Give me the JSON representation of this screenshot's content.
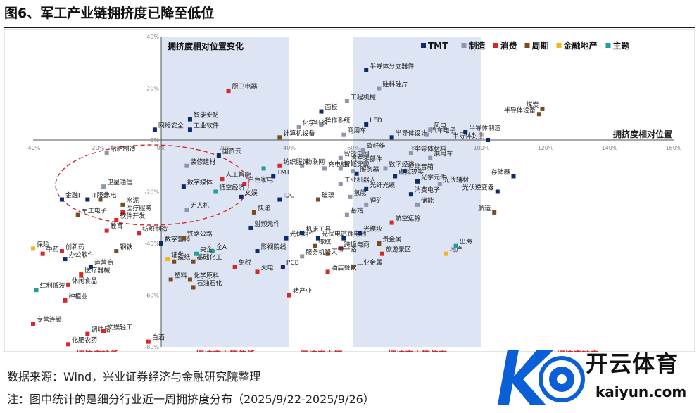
{
  "figure": {
    "title": "图6、军工产业链拥挤度已降至低位",
    "source": "数据来源：Wind，兴业证券经济与金融研究院整理",
    "note": "注：图中统计的是细分行业近一周拥挤度分布（2025/9/22-2025/9/26）"
  },
  "logo": {
    "cn": "开云体育",
    "en": "kaiyun.com"
  },
  "chart_data": {
    "type": "scatter",
    "title": "拥挤度相对位置变化",
    "xlabel": "拥挤度相对位置",
    "ylabel": "",
    "xlim": [
      -40,
      160
    ],
    "ylim": [
      -80,
      40
    ],
    "x_ticks": [
      -40,
      -20,
      0,
      20,
      40,
      60,
      80,
      100,
      120,
      140,
      160
    ],
    "y_ticks": [
      40,
      20,
      0,
      -20,
      -40,
      -60,
      -80
    ],
    "tick_format": "%",
    "grid": false,
    "legend_position": "top-right",
    "annotation": "ellipse",
    "bands": [
      {
        "label": "拥挤度较低",
        "from": -40,
        "to": 0,
        "color": "#ffffff"
      },
      {
        "label": "拥挤度中等偏低",
        "from": 0,
        "to": 40,
        "color": "#dde4f3"
      },
      {
        "label": "拥挤度中等",
        "from": 40,
        "to": 60,
        "color": "#ffffff"
      },
      {
        "label": "拥挤度中等偏高",
        "from": 60,
        "to": 100,
        "color": "#dde4f3"
      },
      {
        "label": "拥挤度较高",
        "from": 100,
        "to": 160,
        "color": "#ffffff"
      }
    ],
    "series": [
      {
        "name": "TMT",
        "color": "#0d2b6b",
        "points": [
          {
            "label": "半导体分立器件",
            "x": 64,
            "y": 27
          },
          {
            "label": "LED",
            "x": 64,
            "y": 6
          },
          {
            "label": "半导体设计",
            "x": 72,
            "y": 1
          },
          {
            "label": "半导体制造",
            "x": 95,
            "y": 3
          },
          {
            "label": "半导体封测",
            "x": 102,
            "y": 0
          },
          {
            "label": "网络安全",
            "x": -2,
            "y": 4
          },
          {
            "label": "智能安防",
            "x": 9,
            "y": 8
          },
          {
            "label": "工业软件",
            "x": 9,
            "y": 4
          },
          {
            "label": "面板",
            "x": 50,
            "y": 11
          },
          {
            "label": "国资云",
            "x": 18,
            "y": -6
          },
          {
            "label": "数字媒体",
            "x": 7,
            "y": -18
          },
          {
            "label": "TMT",
            "x": 35,
            "y": -14
          },
          {
            "label": "文娱",
            "x": 25,
            "y": -22
          },
          {
            "label": "IDC",
            "x": 37,
            "y": -23
          },
          {
            "label": "射频元件",
            "x": 28,
            "y": -34
          },
          {
            "label": "影视院线",
            "x": 30,
            "y": -43
          },
          {
            "label": "PCB",
            "x": 38,
            "y": -49
          },
          {
            "label": "光伏组件",
            "x": 39,
            "y": -38
          },
          {
            "label": "机床工具",
            "x": 44,
            "y": -36
          },
          {
            "label": "光伏电站",
            "x": 49,
            "y": -38
          },
          {
            "label": "锂电池",
            "x": 57,
            "y": -38
          },
          {
            "label": "光模块",
            "x": 62,
            "y": -36
          },
          {
            "label": "服务器",
            "x": 61,
            "y": -13
          },
          {
            "label": "光纤光缆",
            "x": 64,
            "y": -19
          },
          {
            "label": "虚拟现实",
            "x": 73,
            "y": -14
          },
          {
            "label": "智能音箱",
            "x": 76,
            "y": -12
          },
          {
            "label": "消费电子",
            "x": 78,
            "y": -21
          },
          {
            "label": "光学元件",
            "x": 80,
            "y": -16
          },
          {
            "label": "存储器",
            "x": 110,
            "y": -14
          },
          {
            "label": "光伏逆变器",
            "x": 105,
            "y": -20
          },
          {
            "label": "数字营销",
            "x": 0,
            "y": -40
          },
          {
            "label": "运营商",
            "x": -22,
            "y": -49
          },
          {
            "label": "办公软件",
            "x": -30,
            "y": -46
          },
          {
            "label": "金融IT",
            "x": -31,
            "y": -23
          },
          {
            "label": "IT服务",
            "x": -23,
            "y": -23
          }
        ]
      },
      {
        "name": "制造",
        "color": "#8a98ad",
        "points": [
          {
            "label": "硅料硅片",
            "x": 68,
            "y": 20
          },
          {
            "label": "工程机械",
            "x": 58,
            "y": 15
          },
          {
            "label": "风电",
            "x": 84,
            "y": 4
          },
          {
            "label": "汽车电子",
            "x": 83,
            "y": 2
          },
          {
            "label": "操作系统",
            "x": 50,
            "y": 6
          },
          {
            "label": "化学纤维",
            "x": 43,
            "y": 5
          },
          {
            "label": "商用车",
            "x": 57,
            "y": 2
          },
          {
            "label": "船舶制造",
            "x": -17,
            "y": -5
          },
          {
            "label": "装修建材",
            "x": 8,
            "y": -10
          },
          {
            "label": "卫星通信",
            "x": -18,
            "y": -18
          },
          {
            "label": "无人机",
            "x": 8,
            "y": -27
          },
          {
            "label": "半导体材料",
            "x": 78,
            "y": -5
          },
          {
            "label": "乘用车",
            "x": 84,
            "y": -7
          },
          {
            "label": "数字经济",
            "x": 70,
            "y": -11
          },
          {
            "label": "汽车零部件",
            "x": 58,
            "y": -9
          },
          {
            "label": "智能电网",
            "x": 56,
            "y": -7
          },
          {
            "label": "碳纤维",
            "x": 63,
            "y": -4
          },
          {
            "label": "工业机器人",
            "x": 56,
            "y": -17
          },
          {
            "label": "氢能",
            "x": 59,
            "y": -22
          },
          {
            "label": "锂矿",
            "x": 64,
            "y": -25
          },
          {
            "label": "基站",
            "x": 58,
            "y": -29
          },
          {
            "label": "光伏辅材",
            "x": 87,
            "y": -17
          },
          {
            "label": "储能",
            "x": 80,
            "y": -25
          },
          {
            "label": "服务机器人",
            "x": 44,
            "y": -45
          },
          {
            "label": "充电桩",
            "x": 51,
            "y": -11
          },
          {
            "label": "物联网",
            "x": 44,
            "y": -10
          },
          {
            "label": "锂电池群",
            "x": 60,
            "y": -12
          },
          {
            "label": "智能穿戴",
            "x": 56,
            "y": -11
          }
        ]
      },
      {
        "name": "消费",
        "color": "#d9262a",
        "points": [
          {
            "label": "厨卫电器",
            "x": 21,
            "y": 19
          },
          {
            "label": "人工智能",
            "x": 19,
            "y": -15
          },
          {
            "label": "纺织服饰",
            "x": 37,
            "y": -10
          },
          {
            "label": "白色家电",
            "x": 26,
            "y": -17
          },
          {
            "label": "免税",
            "x": 23,
            "y": -49
          },
          {
            "label": "火电",
            "x": 30,
            "y": -51
          },
          {
            "label": "猪产业",
            "x": 40,
            "y": -60
          },
          {
            "label": "酒店餐饮",
            "x": 52,
            "y": -51
          },
          {
            "label": "跨境电商",
            "x": 56,
            "y": -42
          },
          {
            "label": "旅游景区",
            "x": 69,
            "y": -44
          },
          {
            "label": "航空运输",
            "x": 72,
            "y": -32
          },
          {
            "label": "教育",
            "x": -17,
            "y": -35
          },
          {
            "label": "纺织制造",
            "x": -7,
            "y": -36
          },
          {
            "label": "医疗服务",
            "x": -12,
            "y": -28
          },
          {
            "label": "软件开发",
            "x": -14,
            "y": -31
          },
          {
            "label": "中药",
            "x": -37,
            "y": -44
          },
          {
            "label": "创新药",
            "x": -31,
            "y": -43
          },
          {
            "label": "医疗器械",
            "x": -25,
            "y": -52
          },
          {
            "label": "休闲食品",
            "x": -29,
            "y": -56
          },
          {
            "label": "种植业",
            "x": -30,
            "y": -62
          },
          {
            "label": "专营连锁",
            "x": -40,
            "y": -71
          },
          {
            "label": "调味品",
            "x": -23,
            "y": -75
          },
          {
            "label": "文娱轻工",
            "x": -18,
            "y": -74
          },
          {
            "label": "白酒",
            "x": -4,
            "y": -78
          },
          {
            "label": "化肥农药",
            "x": -29,
            "y": -79
          }
        ]
      },
      {
        "name": "周期",
        "color": "#7a4a22",
        "points": [
          {
            "label": "煤炭",
            "x": 119,
            "y": 12
          },
          {
            "label": "半导体设备",
            "x": 118,
            "y": 10
          },
          {
            "label": "计算机设备",
            "x": 37,
            "y": 1
          },
          {
            "label": "铁路公路",
            "x": 7,
            "y": -38
          },
          {
            "label": "快递",
            "x": 29,
            "y": -28
          },
          {
            "label": "玻璃",
            "x": 49,
            "y": -23
          },
          {
            "label": "橡胶",
            "x": 48,
            "y": -41
          },
          {
            "label": "贵金属",
            "x": 68,
            "y": -40
          },
          {
            "label": "工业金属",
            "x": 60,
            "y": -49
          },
          {
            "label": "航运",
            "x": 104,
            "y": -28
          },
          {
            "label": "钢铁",
            "x": -14,
            "y": -43
          },
          {
            "label": "水泥",
            "x": -12,
            "y": -25
          },
          {
            "label": "水电",
            "x": -19,
            "y": -23
          },
          {
            "label": "造纸",
            "x": 4,
            "y": -47
          },
          {
            "label": "塑料",
            "x": 3,
            "y": -54
          },
          {
            "label": "化学原料",
            "x": 9,
            "y": -54
          },
          {
            "label": "石油石化",
            "x": 10,
            "y": -57
          },
          {
            "label": "一带一路",
            "x": 52,
            "y": -44
          },
          {
            "label": "基础化工",
            "x": 10,
            "y": -47
          },
          {
            "label": "军工电子",
            "x": -26,
            "y": -29
          }
        ]
      },
      {
        "name": "金融地产",
        "color": "#f2b51d",
        "points": [
          {
            "label": "地产",
            "x": 89,
            "y": -44
          },
          {
            "label": "证券",
            "x": 2,
            "y": -46
          },
          {
            "label": "保险",
            "x": -40,
            "y": -42
          }
        ]
      },
      {
        "name": "主题",
        "color": "#1f9e9e",
        "points": [
          {
            "label": "出海",
            "x": 92,
            "y": -41
          },
          {
            "label": "低空经济",
            "x": 17,
            "y": -20
          },
          {
            "label": "全A",
            "x": 16,
            "y": -43
          },
          {
            "label": "央企",
            "x": 11,
            "y": -44
          },
          {
            "label": "红利低波",
            "x": -39,
            "y": -58
          },
          {
            "label": "人工智能主题",
            "x": 32,
            "y": -11
          }
        ]
      }
    ]
  }
}
